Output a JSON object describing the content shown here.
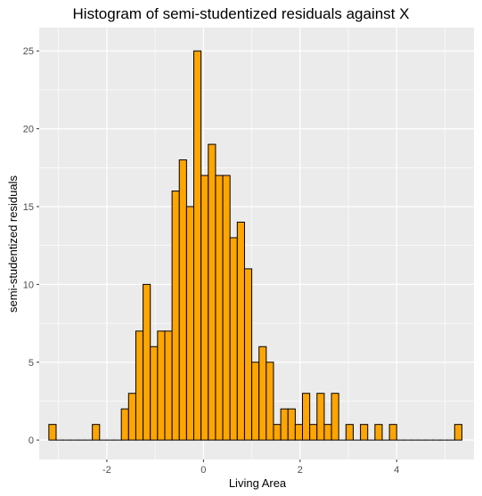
{
  "chart_data": {
    "type": "bar",
    "title": "Histogram of semi-studentized residuals against X",
    "xlabel": "Living Area",
    "ylabel": "semi-studentized residuals",
    "xlim": [
      -3.4,
      5.6
    ],
    "ylim": [
      -1.25,
      26.5
    ],
    "x_ticks": [
      -2,
      0,
      2,
      4
    ],
    "y_ticks": [
      0,
      5,
      10,
      15,
      20,
      25
    ],
    "bin_width": 0.15,
    "bin_starts": [
      -3.2,
      -3.05,
      -2.9,
      -2.75,
      -2.6,
      -2.45,
      -2.3,
      -2.15,
      -2.0,
      -1.85,
      -1.7,
      -1.55,
      -1.4,
      -1.25,
      -1.1,
      -0.95,
      -0.8,
      -0.65,
      -0.5,
      -0.35,
      -0.2,
      -0.05,
      0.1,
      0.25,
      0.4,
      0.55,
      0.7,
      0.85,
      1.0,
      1.15,
      1.3,
      1.45,
      1.6,
      1.75,
      1.9,
      2.05,
      2.2,
      2.35,
      2.5,
      2.65,
      2.8,
      2.95,
      3.1,
      3.25,
      3.4,
      3.55,
      3.7,
      3.85,
      4.0,
      4.15,
      4.3,
      4.45,
      4.6,
      4.75,
      4.9,
      5.05,
      5.2
    ],
    "values": [
      1,
      0,
      0,
      0,
      0,
      0,
      1,
      0,
      0,
      0,
      2,
      3,
      7,
      10,
      6,
      7,
      7,
      16,
      18,
      15,
      25,
      17,
      19,
      17,
      17,
      13,
      14,
      11,
      5,
      6,
      5,
      1,
      2,
      2,
      1,
      3,
      1,
      3,
      1,
      3,
      0,
      1,
      0,
      1,
      0,
      1,
      0,
      1,
      0,
      0,
      0,
      0,
      0,
      0,
      0,
      0,
      1
    ],
    "grid": true,
    "colors": {
      "panel": "#ebebeb",
      "grid": "#ffffff",
      "bar_fill": "#ffa500",
      "bar_stroke": "#000000"
    }
  }
}
